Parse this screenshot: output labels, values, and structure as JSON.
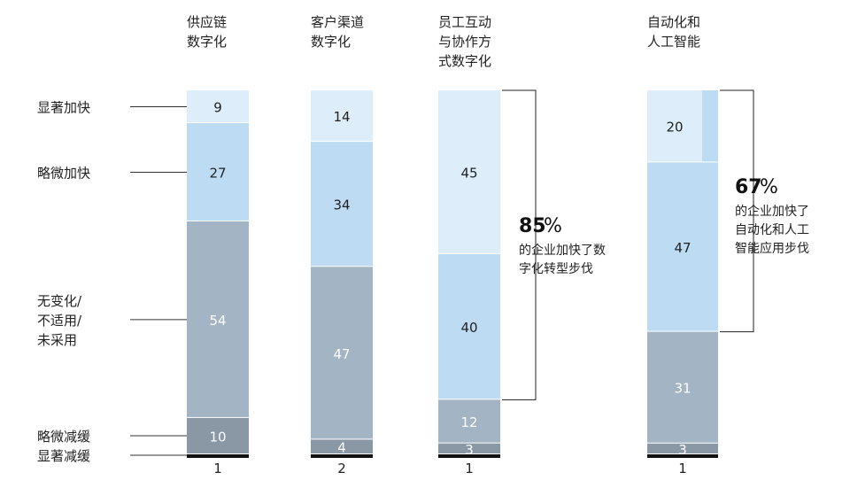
{
  "chart_data": {
    "type": "bar",
    "stacked": true,
    "levels": [
      {
        "key": "sig_faster",
        "label_lines": [
          "显著加快"
        ],
        "color": "#ddeefa",
        "text_color": "#222222"
      },
      {
        "key": "slight_faster",
        "label_lines": [
          "略微加快"
        ],
        "color": "#bddcf4",
        "text_color": "#222222"
      },
      {
        "key": "no_change",
        "label_lines": [
          "无变化/",
          "不适用/",
          "未采用"
        ],
        "color": "#a3b4c4",
        "text_color": "#ffffff"
      },
      {
        "key": "slight_slower",
        "label_lines": [
          "略微减缓"
        ],
        "color": "#8a97a4",
        "text_color": "#ffffff"
      },
      {
        "key": "sig_slower",
        "label_lines": [
          "显著减缓"
        ],
        "color": "#111111",
        "text_color": "#ffffff"
      }
    ],
    "columns": [
      {
        "title_lines": [
          "供应链",
          "数字化"
        ],
        "x_label": "1",
        "values": {
          "sig_faster": 9,
          "slight_faster": 27,
          "no_change": 54,
          "slight_slower": 10,
          "sig_slower": null
        }
      },
      {
        "title_lines": [
          "客户渠道",
          "数字化"
        ],
        "x_label": "2",
        "values": {
          "sig_faster": 14,
          "slight_faster": 34,
          "no_change": 47,
          "slight_slower": 4,
          "sig_slower": null
        }
      },
      {
        "title_lines": [
          "员工互动",
          "与协作方",
          "式数字化"
        ],
        "x_label": "1",
        "values": {
          "sig_faster": 45,
          "slight_faster": 40,
          "no_change": 12,
          "slight_slower": 3,
          "sig_slower": null
        },
        "callout": {
          "big": "85",
          "pct": "%",
          "lines": [
            "的企业加快了数",
            "字化转型步伐"
          ]
        }
      },
      {
        "title_lines": [
          "自动化和",
          "人工智能"
        ],
        "x_label": "1",
        "values": {
          "sig_faster": 20,
          "slight_faster": 47,
          "no_change": 31,
          "slight_slower": 3,
          "sig_slower": null
        },
        "callout": {
          "big": "67",
          "pct": "%",
          "lines": [
            "的企业加快了",
            "自动化和人工",
            "智能应用步伐"
          ]
        }
      }
    ]
  }
}
